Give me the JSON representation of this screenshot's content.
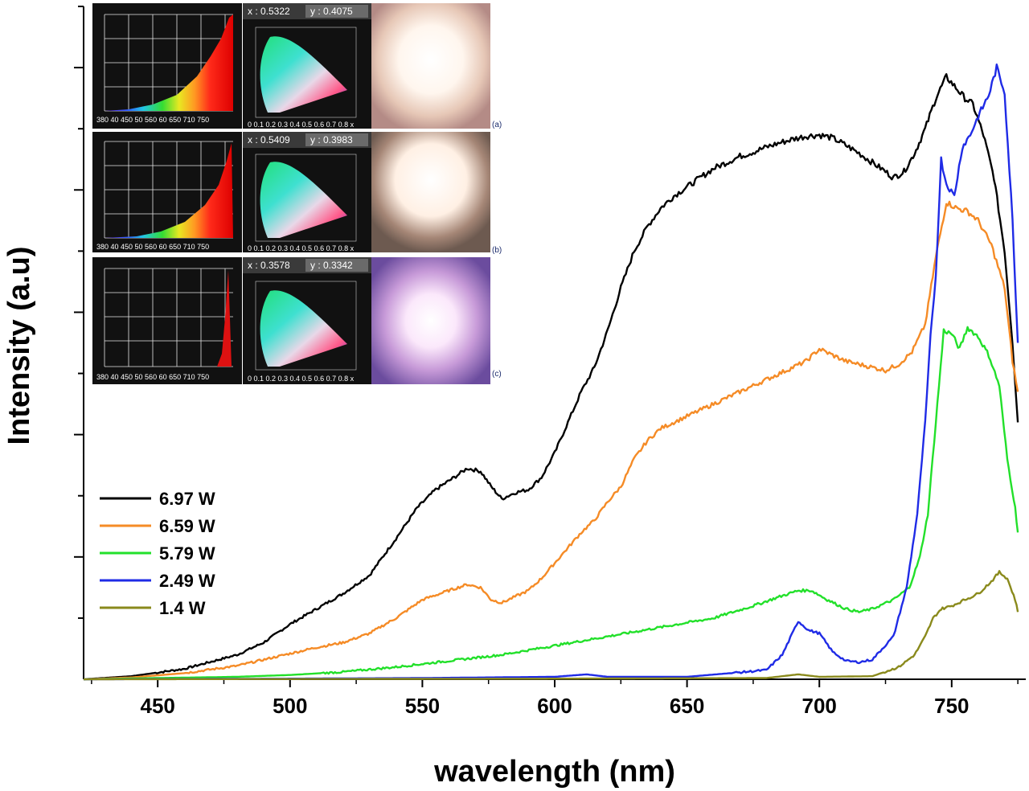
{
  "chart_data": {
    "type": "line",
    "title": "",
    "xlabel": "wavelength (nm)",
    "ylabel": "Intensity (a.u)",
    "xlim": [
      422,
      778
    ],
    "ylim": [
      0,
      1.1
    ],
    "xticks": [
      "450",
      "500",
      "550",
      "600",
      "650",
      "700",
      "750"
    ],
    "grid": false,
    "legend_position": "bottom-left",
    "series": [
      {
        "name": "6.97 W",
        "color": "#000000",
        "points": [
          [
            422,
            0
          ],
          [
            440,
            0.005
          ],
          [
            460,
            0.017
          ],
          [
            480,
            0.04
          ],
          [
            490,
            0.06
          ],
          [
            500,
            0.09
          ],
          [
            510,
            0.115
          ],
          [
            520,
            0.14
          ],
          [
            530,
            0.17
          ],
          [
            540,
            0.23
          ],
          [
            548,
            0.28
          ],
          [
            555,
            0.31
          ],
          [
            562,
            0.33
          ],
          [
            567,
            0.345
          ],
          [
            572,
            0.34
          ],
          [
            576,
            0.315
          ],
          [
            580,
            0.295
          ],
          [
            585,
            0.305
          ],
          [
            590,
            0.31
          ],
          [
            595,
            0.33
          ],
          [
            600,
            0.37
          ],
          [
            605,
            0.42
          ],
          [
            610,
            0.47
          ],
          [
            615,
            0.51
          ],
          [
            620,
            0.57
          ],
          [
            625,
            0.64
          ],
          [
            630,
            0.7
          ],
          [
            635,
            0.74
          ],
          [
            640,
            0.77
          ],
          [
            645,
            0.79
          ],
          [
            650,
            0.805
          ],
          [
            655,
            0.82
          ],
          [
            660,
            0.835
          ],
          [
            665,
            0.845
          ],
          [
            670,
            0.855
          ],
          [
            675,
            0.862
          ],
          [
            680,
            0.87
          ],
          [
            685,
            0.877
          ],
          [
            690,
            0.883
          ],
          [
            695,
            0.888
          ],
          [
            700,
            0.89
          ],
          [
            705,
            0.885
          ],
          [
            710,
            0.873
          ],
          [
            715,
            0.86
          ],
          [
            720,
            0.845
          ],
          [
            725,
            0.83
          ],
          [
            728,
            0.82
          ],
          [
            732,
            0.83
          ],
          [
            736,
            0.86
          ],
          [
            740,
            0.9
          ],
          [
            744,
            0.95
          ],
          [
            748,
            0.985
          ],
          [
            751,
            0.97
          ],
          [
            755,
            0.95
          ],
          [
            758,
            0.94
          ],
          [
            762,
            0.89
          ],
          [
            766,
            0.82
          ],
          [
            770,
            0.7
          ],
          [
            773,
            0.55
          ],
          [
            775,
            0.42
          ]
        ]
      },
      {
        "name": "6.59 W",
        "color": "#f58b26",
        "points": [
          [
            422,
            0
          ],
          [
            440,
            0.003
          ],
          [
            460,
            0.01
          ],
          [
            480,
            0.022
          ],
          [
            500,
            0.042
          ],
          [
            510,
            0.052
          ],
          [
            520,
            0.06
          ],
          [
            530,
            0.075
          ],
          [
            540,
            0.1
          ],
          [
            550,
            0.13
          ],
          [
            560,
            0.145
          ],
          [
            567,
            0.155
          ],
          [
            572,
            0.15
          ],
          [
            576,
            0.13
          ],
          [
            580,
            0.125
          ],
          [
            585,
            0.135
          ],
          [
            590,
            0.145
          ],
          [
            595,
            0.165
          ],
          [
            600,
            0.19
          ],
          [
            605,
            0.215
          ],
          [
            610,
            0.24
          ],
          [
            615,
            0.26
          ],
          [
            620,
            0.29
          ],
          [
            625,
            0.315
          ],
          [
            630,
            0.36
          ],
          [
            635,
            0.39
          ],
          [
            640,
            0.41
          ],
          [
            645,
            0.42
          ],
          [
            650,
            0.43
          ],
          [
            655,
            0.44
          ],
          [
            660,
            0.45
          ],
          [
            665,
            0.46
          ],
          [
            670,
            0.47
          ],
          [
            675,
            0.48
          ],
          [
            680,
            0.49
          ],
          [
            685,
            0.5
          ],
          [
            690,
            0.51
          ],
          [
            695,
            0.52
          ],
          [
            700,
            0.54
          ],
          [
            705,
            0.53
          ],
          [
            710,
            0.52
          ],
          [
            715,
            0.515
          ],
          [
            720,
            0.51
          ],
          [
            725,
            0.505
          ],
          [
            730,
            0.515
          ],
          [
            735,
            0.535
          ],
          [
            740,
            0.58
          ],
          [
            744,
            0.69
          ],
          [
            748,
            0.78
          ],
          [
            752,
            0.77
          ],
          [
            756,
            0.765
          ],
          [
            760,
            0.75
          ],
          [
            765,
            0.71
          ],
          [
            770,
            0.64
          ],
          [
            773,
            0.52
          ],
          [
            775,
            0.47
          ]
        ]
      },
      {
        "name": "5.79 W",
        "color": "#22e02a",
        "points": [
          [
            422,
            0
          ],
          [
            450,
            0.002
          ],
          [
            480,
            0.004
          ],
          [
            500,
            0.007
          ],
          [
            520,
            0.012
          ],
          [
            540,
            0.02
          ],
          [
            560,
            0.03
          ],
          [
            580,
            0.04
          ],
          [
            600,
            0.055
          ],
          [
            620,
            0.07
          ],
          [
            640,
            0.085
          ],
          [
            660,
            0.1
          ],
          [
            675,
            0.12
          ],
          [
            685,
            0.135
          ],
          [
            692,
            0.145
          ],
          [
            697,
            0.145
          ],
          [
            703,
            0.13
          ],
          [
            710,
            0.115
          ],
          [
            715,
            0.11
          ],
          [
            720,
            0.115
          ],
          [
            728,
            0.13
          ],
          [
            734,
            0.15
          ],
          [
            738,
            0.2
          ],
          [
            741,
            0.27
          ],
          [
            744,
            0.42
          ],
          [
            747,
            0.57
          ],
          [
            750,
            0.565
          ],
          [
            753,
            0.54
          ],
          [
            756,
            0.575
          ],
          [
            760,
            0.56
          ],
          [
            764,
            0.53
          ],
          [
            768,
            0.48
          ],
          [
            771,
            0.36
          ],
          [
            774,
            0.28
          ],
          [
            775,
            0.24
          ]
        ]
      },
      {
        "name": "2.49 W",
        "color": "#1f2be6",
        "points": [
          [
            422,
            0
          ],
          [
            500,
            0.001
          ],
          [
            550,
            0.002
          ],
          [
            600,
            0.004
          ],
          [
            612,
            0.008
          ],
          [
            620,
            0.004
          ],
          [
            650,
            0.004
          ],
          [
            680,
            0.015
          ],
          [
            686,
            0.04
          ],
          [
            692,
            0.095
          ],
          [
            696,
            0.08
          ],
          [
            700,
            0.075
          ],
          [
            705,
            0.045
          ],
          [
            710,
            0.03
          ],
          [
            715,
            0.028
          ],
          [
            720,
            0.032
          ],
          [
            728,
            0.07
          ],
          [
            733,
            0.15
          ],
          [
            737,
            0.27
          ],
          [
            740,
            0.42
          ],
          [
            742,
            0.56
          ],
          [
            744,
            0.66
          ],
          [
            746,
            0.85
          ],
          [
            748,
            0.81
          ],
          [
            751,
            0.79
          ],
          [
            754,
            0.87
          ],
          [
            757,
            0.89
          ],
          [
            760,
            0.92
          ],
          [
            764,
            0.955
          ],
          [
            767,
            1.0
          ],
          [
            770,
            0.96
          ],
          [
            773,
            0.75
          ],
          [
            775,
            0.55
          ]
        ]
      },
      {
        "name": "1.4 W",
        "color": "#8a8a1c",
        "points": [
          [
            422,
            0
          ],
          [
            600,
            0.001
          ],
          [
            680,
            0.002
          ],
          [
            692,
            0.008
          ],
          [
            700,
            0.004
          ],
          [
            720,
            0.005
          ],
          [
            730,
            0.02
          ],
          [
            736,
            0.04
          ],
          [
            740,
            0.07
          ],
          [
            743,
            0.1
          ],
          [
            746,
            0.115
          ],
          [
            750,
            0.12
          ],
          [
            755,
            0.13
          ],
          [
            760,
            0.14
          ],
          [
            765,
            0.16
          ],
          [
            768,
            0.175
          ],
          [
            771,
            0.165
          ],
          [
            774,
            0.13
          ],
          [
            775,
            0.11
          ]
        ]
      }
    ]
  },
  "insets": {
    "panels": [
      {
        "coord_x": "x : 0.5322",
        "coord_y": "y : 0.4075",
        "label": "(a)",
        "photo_hue": "warm"
      },
      {
        "coord_x": "x : 0.5409",
        "coord_y": "y : 0.3983",
        "label": "(b)",
        "photo_hue": "warm"
      },
      {
        "coord_x": "x : 0.3578",
        "coord_y": "y : 0.3342",
        "label": "(c)",
        "photo_hue": "purple"
      }
    ],
    "spectrum_axis_ticks": "380 40 450 50 560 60 650 710 750",
    "cie_axis_ticks": "0 0.1 0.2 0.3 0.4 0.5 0.6 0.7 0.8 x"
  }
}
